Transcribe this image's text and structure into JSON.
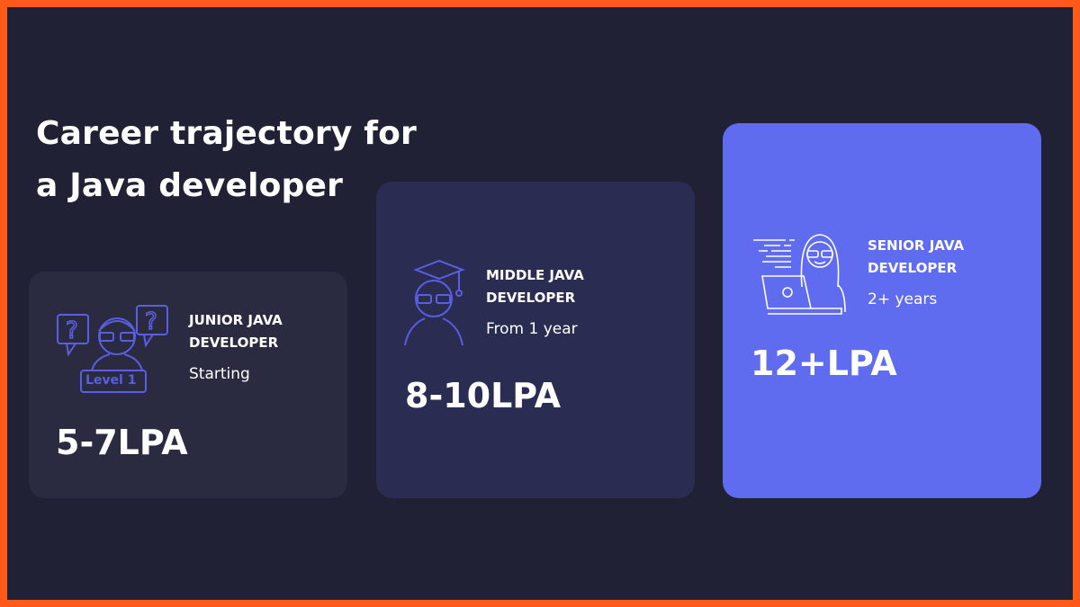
{
  "title": {
    "line1": "Career trajectory for",
    "line2": "a Java developer"
  },
  "colors": {
    "frame": "#ff5a1a",
    "background": "#212136",
    "junior_card": "#2a2a40",
    "middle_card": "#2b2c52",
    "senior_card": "#5f6cf0",
    "icon_stroke": "#5a5ee0"
  },
  "cards": [
    {
      "role_line1": "JUNIOR JAVA",
      "role_line2": "DEVELOPER",
      "experience": "Starting",
      "salary": "5-7LPA",
      "icon": "confused-developer-icon",
      "badge": "Level 1"
    },
    {
      "role_line1": "MIDDLE JAVA",
      "role_line2": "DEVELOPER",
      "experience": "From 1 year",
      "salary": "8-10LPA",
      "icon": "graduate-developer-icon"
    },
    {
      "role_line1": "SENIOR JAVA",
      "role_line2": "DEVELOPER",
      "experience": "2+ years",
      "salary": "12+LPA",
      "icon": "coder-laptop-icon"
    }
  ]
}
